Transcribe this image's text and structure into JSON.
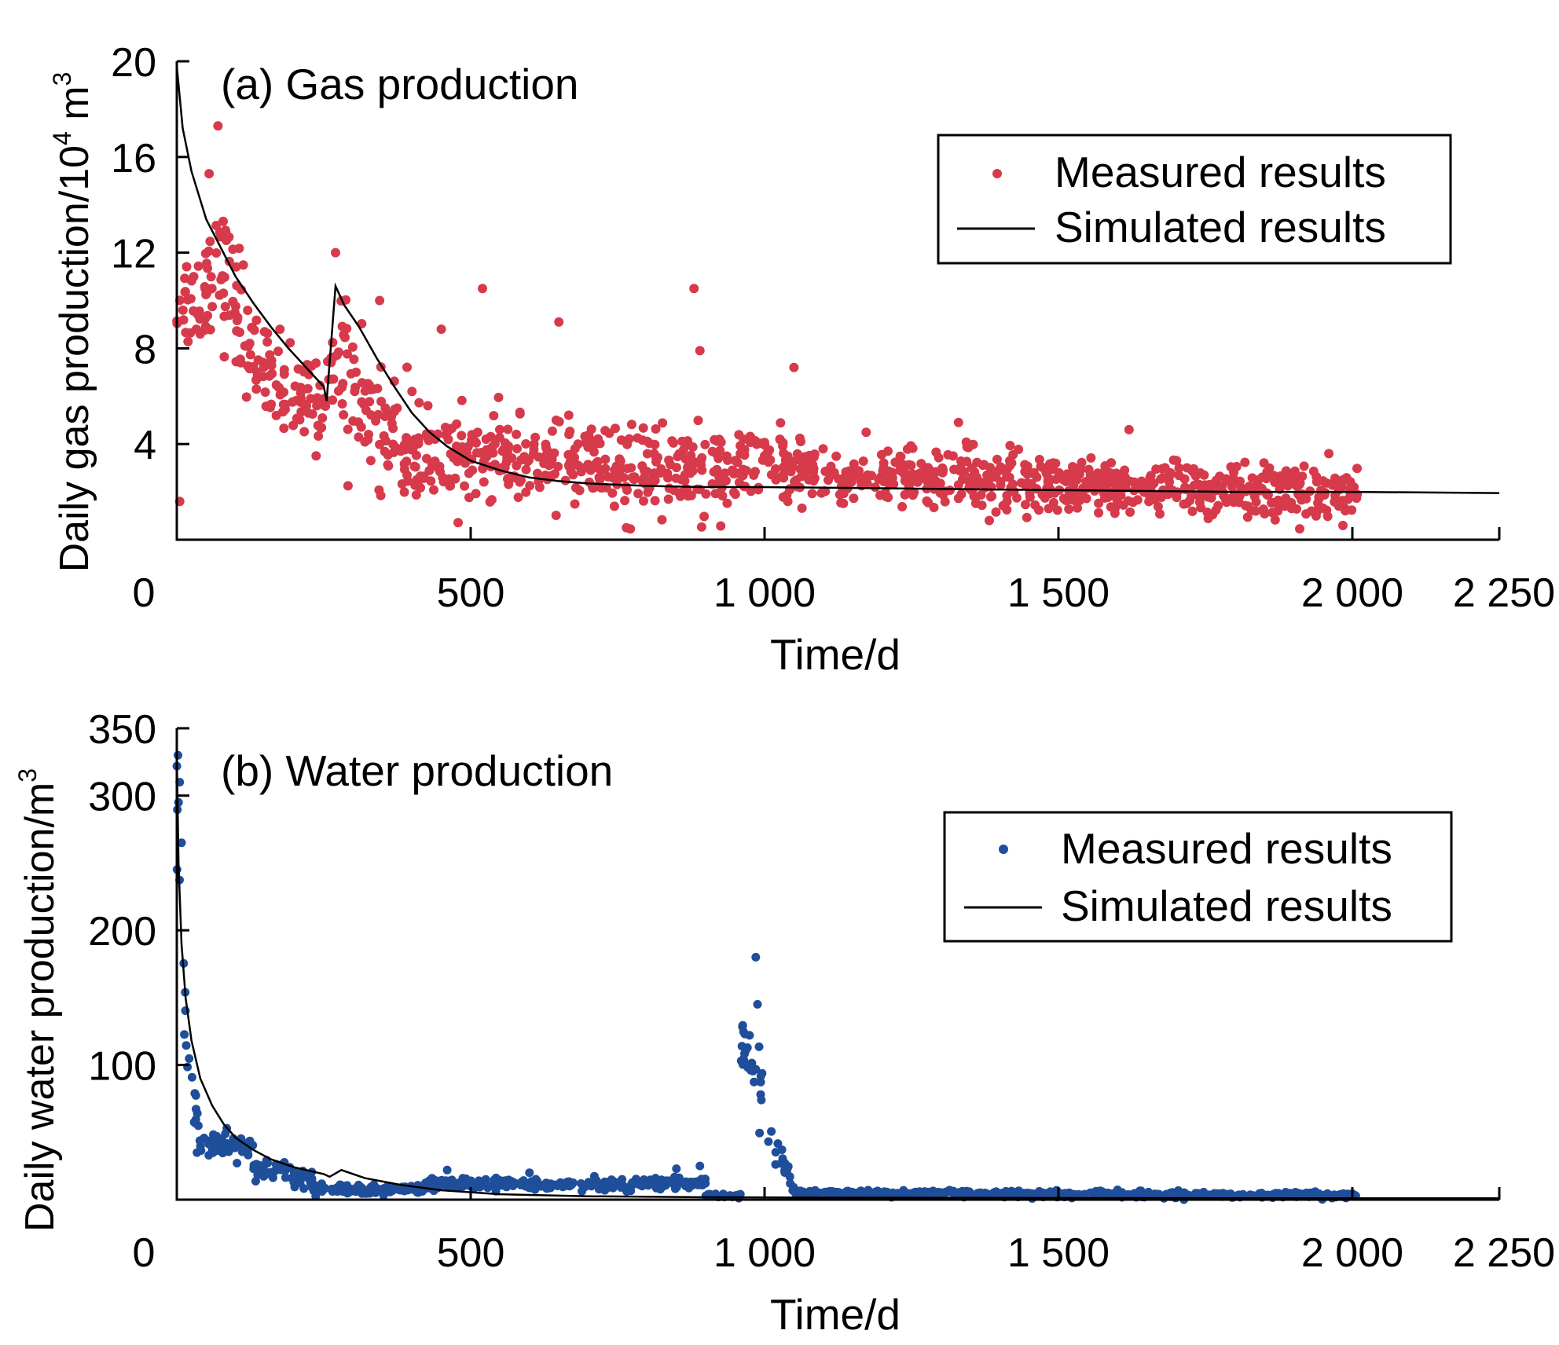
{
  "colors": {
    "gas_measured": "#D63A4B",
    "water_measured": "#1F4E9A",
    "simulated": "#000000"
  },
  "chart_data": [
    {
      "type": "scatter",
      "panel_label": "(a) Gas production",
      "xlabel": "Time/d",
      "ylabel": "Daily gas production/10",
      "ylabel_sup": "4",
      "ylabel_unit": " m",
      "ylabel_unit_sup": "3",
      "xlim": [
        0,
        2250
      ],
      "ylim": [
        0,
        20
      ],
      "x_ticks": [
        0,
        500,
        1000,
        1500,
        2000,
        2250
      ],
      "x_tick_labels": [
        "0",
        "500",
        "1 000",
        "1 500",
        "2 000",
        "2 250"
      ],
      "y_ticks": [
        4,
        8,
        12,
        16,
        20
      ],
      "y_tick_labels": [
        "4",
        "8",
        "12",
        "16",
        "20"
      ],
      "grid": false,
      "legend": {
        "position": "top-right",
        "entries": [
          "Measured results",
          "Simulated results"
        ]
      },
      "series": [
        {
          "name": "Simulated results",
          "kind": "line",
          "x": [
            0,
            10,
            25,
            50,
            75,
            100,
            130,
            160,
            190,
            220,
            250,
            255,
            270,
            285,
            310,
            340,
            370,
            400,
            430,
            460,
            500,
            550,
            600,
            650,
            700,
            800,
            900,
            1000,
            1200,
            1400,
            1600,
            1800,
            2000,
            2250
          ],
          "y": [
            19.8,
            17.2,
            15.4,
            13.4,
            12.2,
            11.0,
            9.9,
            8.9,
            8.0,
            7.2,
            6.4,
            5.8,
            10.6,
            9.8,
            8.9,
            7.6,
            6.4,
            5.3,
            4.5,
            3.9,
            3.3,
            2.9,
            2.6,
            2.45,
            2.35,
            2.25,
            2.2,
            2.2,
            2.15,
            2.1,
            2.05,
            2.0,
            2.0,
            1.95
          ]
        },
        {
          "name": "Measured results",
          "kind": "scatter",
          "generator": {
            "segments": [
              {
                "x": [
                  0,
                  60
                ],
                "center": [
                  9.5,
                  11.0
                ],
                "spread": 2.2
              },
              {
                "x": [
                  60,
                  120
                ],
                "center": [
                  12.0,
                  9.0
                ],
                "spread": 2.5
              },
              {
                "x": [
                  120,
                  250
                ],
                "center": [
                  7.5,
                  5.5
                ],
                "spread": 1.8
              },
              {
                "x": [
                  250,
                  290
                ],
                "center": [
                  6.5,
                  8.0
                ],
                "spread": 2.0
              },
              {
                "x": [
                  290,
                  400
                ],
                "center": [
                  6.5,
                  3.5
                ],
                "spread": 2.2
              },
              {
                "x": [
                  400,
                  500
                ],
                "center": [
                  3.5,
                  3.0
                ],
                "spread": 1.8
              },
              {
                "x": [
                  500,
                  950
                ],
                "center": [
                  3.3,
                  2.8
                ],
                "spread": 1.6
              },
              {
                "x": [
                  950,
                  1100
                ],
                "center": [
                  3.2,
                  3.0
                ],
                "spread": 1.3
              },
              {
                "x": [
                  1100,
                  1500
                ],
                "center": [
                  2.6,
                  2.5
                ],
                "spread": 1.1
              },
              {
                "x": [
                  1500,
                  2010
                ],
                "center": [
                  2.3,
                  1.8
                ],
                "spread": 1.0
              }
            ],
            "count": 1300,
            "outliers": [
              [
                70,
                17.3
              ],
              [
                55,
                15.3
              ],
              [
                270,
                12.0
              ],
              [
                520,
                10.5
              ],
              [
                880,
                10.5
              ],
              [
                650,
                9.1
              ],
              [
                450,
                8.8
              ],
              [
                1050,
                7.2
              ],
              [
                890,
                7.9
              ],
              [
                345,
                10.0
              ],
              [
                5,
                1.6
              ],
              [
                1330,
                4.9
              ],
              [
                1620,
                4.6
              ],
              [
                1960,
                3.6
              ]
            ]
          }
        }
      ]
    },
    {
      "type": "scatter",
      "panel_label": "(b) Water production",
      "xlabel": "Time/d",
      "ylabel": "Daily water production/m",
      "ylabel_sup": "3",
      "xlim": [
        0,
        2250
      ],
      "ylim": [
        0,
        350
      ],
      "x_ticks": [
        0,
        500,
        1000,
        1500,
        2000,
        2250
      ],
      "x_tick_labels": [
        "0",
        "500",
        "1 000",
        "1 500",
        "2 000",
        "2 250"
      ],
      "y_ticks": [
        100,
        200,
        300,
        350
      ],
      "y_tick_labels": [
        "100",
        "200",
        "300",
        "350"
      ],
      "grid": false,
      "legend": {
        "position": "top-right",
        "entries": [
          "Measured results",
          "Simulated results"
        ]
      },
      "series": [
        {
          "name": "Simulated results",
          "kind": "line",
          "x": [
            0,
            3,
            8,
            15,
            25,
            40,
            60,
            80,
            100,
            130,
            160,
            200,
            250,
            260,
            280,
            320,
            380,
            450,
            550,
            700,
            900,
            1100,
            1500,
            2000,
            2250
          ],
          "y": [
            330,
            250,
            190,
            150,
            118,
            90,
            70,
            56,
            46,
            37,
            30,
            24,
            19,
            17,
            22,
            16,
            11,
            7,
            4,
            2.5,
            1.8,
            1.5,
            1.2,
            1.0,
            1.0
          ]
        },
        {
          "name": "Measured results",
          "kind": "scatter",
          "generator": {
            "segments": [
              {
                "x": [
                  0,
                  15
                ],
                "center": [
                  300,
                  140
                ],
                "spread": 40
              },
              {
                "x": [
                  15,
                  40
                ],
                "center": [
                  100,
                  50
                ],
                "spread": 20
              },
              {
                "x": [
                  40,
                  130
                ],
                "center": [
                  40,
                  38
                ],
                "spread": 8
              },
              {
                "x": [
                  130,
                  230
                ],
                "center": [
                  25,
                  15
                ],
                "spread": 7
              },
              {
                "x": [
                  230,
                  420
                ],
                "center": [
                  8,
                  8
                ],
                "spread": 3
              },
              {
                "x": [
                  420,
                  900
                ],
                "center": [
                  12,
                  11
                ],
                "spread": 4
              },
              {
                "x": [
                  900,
                  960
                ],
                "center": [
                  3,
                  3
                ],
                "spread": 1.5
              },
              {
                "x": [
                  960,
                  1020
                ],
                "center": [
                  120,
                  40
                ],
                "spread": 25
              },
              {
                "x": [
                  1020,
                  1050
                ],
                "center": [
                  40,
                  10
                ],
                "spread": 8
              },
              {
                "x": [
                  1050,
                  2010
                ],
                "center": [
                  5,
                  3
                ],
                "spread": 2
              }
            ],
            "count": 1100,
            "outliers": [
              [
                2,
                330
              ],
              [
                5,
                310
              ],
              [
                8,
                265
              ],
              [
                3,
                295
              ],
              [
                985,
                180
              ],
              [
                988,
                145
              ],
              [
                850,
                23
              ],
              [
                890,
                25
              ],
              [
                600,
                20
              ],
              [
                460,
                22
              ],
              [
                85,
                53
              ]
            ]
          }
        }
      ]
    }
  ]
}
